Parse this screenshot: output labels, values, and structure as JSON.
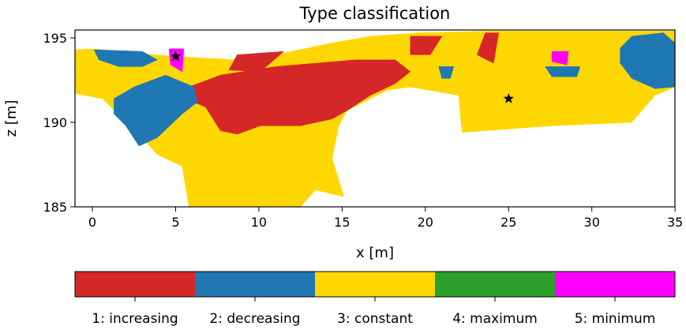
{
  "chart_data": {
    "type": "heatmap",
    "title": "Type classification",
    "xlabel": "x [m]",
    "ylabel": "z [m]",
    "xlim": [
      -1,
      35
    ],
    "ylim": [
      185,
      195.6
    ],
    "xticks": [
      "0",
      "5",
      "10",
      "15",
      "20",
      "25",
      "30",
      "35"
    ],
    "xtick_values": [
      0,
      5,
      10,
      15,
      20,
      25,
      30,
      35
    ],
    "yticks": [
      "185",
      "190",
      "195"
    ],
    "ytick_values": [
      185,
      190,
      195
    ],
    "grid": false,
    "categories": [
      {
        "label": "1: increasing",
        "color": "#d62728"
      },
      {
        "label": "2: decreasing",
        "color": "#1f77b4"
      },
      {
        "label": "3: constant",
        "color": "#ffd700"
      },
      {
        "label": "4: maximum",
        "color": "#2ca02c"
      },
      {
        "label": "5: minimum",
        "color": "#ff00ff"
      }
    ],
    "regions": [
      {
        "class": 3,
        "points": [
          [
            -1,
            194.3
          ],
          [
            0.1,
            194.35
          ],
          [
            4.9,
            193.9
          ],
          [
            8.7,
            193.7
          ],
          [
            11,
            194
          ],
          [
            14.4,
            194.7
          ],
          [
            16.7,
            195.1
          ],
          [
            19.6,
            195.3
          ],
          [
            23.9,
            195.4
          ],
          [
            35,
            195.4
          ],
          [
            35,
            192.1
          ],
          [
            33.8,
            191.6
          ],
          [
            32.4,
            190
          ],
          [
            27.6,
            189.8
          ],
          [
            22.2,
            189.4
          ],
          [
            22,
            191.6
          ],
          [
            19.1,
            192.1
          ],
          [
            17.7,
            191.9
          ],
          [
            15.3,
            190.7
          ],
          [
            14.8,
            189.8
          ],
          [
            14.4,
            187.9
          ],
          [
            15.1,
            185.6
          ],
          [
            13.4,
            186
          ],
          [
            12.5,
            185
          ],
          [
            5.8,
            185
          ],
          [
            5.4,
            187.4
          ],
          [
            3.9,
            188.1
          ],
          [
            2.8,
            189.3
          ],
          [
            0.6,
            191.4
          ],
          [
            -1,
            191.7
          ]
        ]
      },
      {
        "class": 1,
        "points": [
          [
            5.8,
            192.1
          ],
          [
            7.7,
            192.8
          ],
          [
            11,
            193.3
          ],
          [
            13.4,
            193.5
          ],
          [
            15.8,
            193.7
          ],
          [
            18.2,
            193.7
          ],
          [
            19.1,
            193
          ],
          [
            18.2,
            192.3
          ],
          [
            16.7,
            191.6
          ],
          [
            15.3,
            190.7
          ],
          [
            14.4,
            190.2
          ],
          [
            12.5,
            189.8
          ],
          [
            10.1,
            189.8
          ],
          [
            8.7,
            189.3
          ],
          [
            7.7,
            189.5
          ],
          [
            6.8,
            190.9
          ],
          [
            6.1,
            191.2
          ]
        ]
      },
      {
        "class": 2,
        "points": [
          [
            1.3,
            191.4
          ],
          [
            2.5,
            192.1
          ],
          [
            4.4,
            192.8
          ],
          [
            6.1,
            192.1
          ],
          [
            6.3,
            191.2
          ],
          [
            5.4,
            190.5
          ],
          [
            3.9,
            189.1
          ],
          [
            2.8,
            188.6
          ],
          [
            2,
            189.8
          ],
          [
            1.3,
            190.5
          ]
        ]
      },
      {
        "class": 2,
        "points": [
          [
            0.1,
            194.3
          ],
          [
            3,
            194.2
          ],
          [
            3.9,
            193.7
          ],
          [
            3,
            193.3
          ],
          [
            1.6,
            193.3
          ],
          [
            0.4,
            193.7
          ]
        ]
      },
      {
        "class": 2,
        "points": [
          [
            31.7,
            194.4
          ],
          [
            32.4,
            195.1
          ],
          [
            34.3,
            195.3
          ],
          [
            35,
            194.7
          ],
          [
            35,
            192.1
          ],
          [
            33.8,
            192
          ],
          [
            32.4,
            192.6
          ],
          [
            31.7,
            193.5
          ]
        ]
      },
      {
        "class": 2,
        "points": [
          [
            27.2,
            193.3
          ],
          [
            29.3,
            193.3
          ],
          [
            29.1,
            192.7
          ],
          [
            27.6,
            192.7
          ]
        ]
      },
      {
        "class": 2,
        "points": [
          [
            20.8,
            193.3
          ],
          [
            21.7,
            193.3
          ],
          [
            21.5,
            192.6
          ],
          [
            21,
            192.6
          ]
        ]
      },
      {
        "class": 1,
        "points": [
          [
            8.7,
            194
          ],
          [
            11.5,
            194.2
          ],
          [
            10.1,
            193
          ],
          [
            8.2,
            193.1
          ]
        ]
      },
      {
        "class": 1,
        "points": [
          [
            23.6,
            195.3
          ],
          [
            24.4,
            195.3
          ],
          [
            24.1,
            193.5
          ],
          [
            23.1,
            194
          ]
        ]
      },
      {
        "class": 1,
        "points": [
          [
            19.1,
            195.1
          ],
          [
            21,
            195.1
          ],
          [
            20.3,
            194
          ],
          [
            19.1,
            194
          ]
        ]
      },
      {
        "class": 5,
        "points": [
          [
            27.6,
            194.2
          ],
          [
            28.6,
            194.2
          ],
          [
            28.5,
            193.4
          ],
          [
            27.6,
            193.6
          ]
        ]
      },
      {
        "class": 5,
        "points": [
          [
            4.6,
            194.35
          ],
          [
            5.5,
            194.35
          ],
          [
            5.4,
            193
          ],
          [
            4.7,
            193.4
          ]
        ]
      }
    ],
    "markers": [
      {
        "symbol": "star",
        "x": 5,
        "y": 193.9
      },
      {
        "symbol": "star",
        "x": 25,
        "y": 191.4
      }
    ]
  }
}
